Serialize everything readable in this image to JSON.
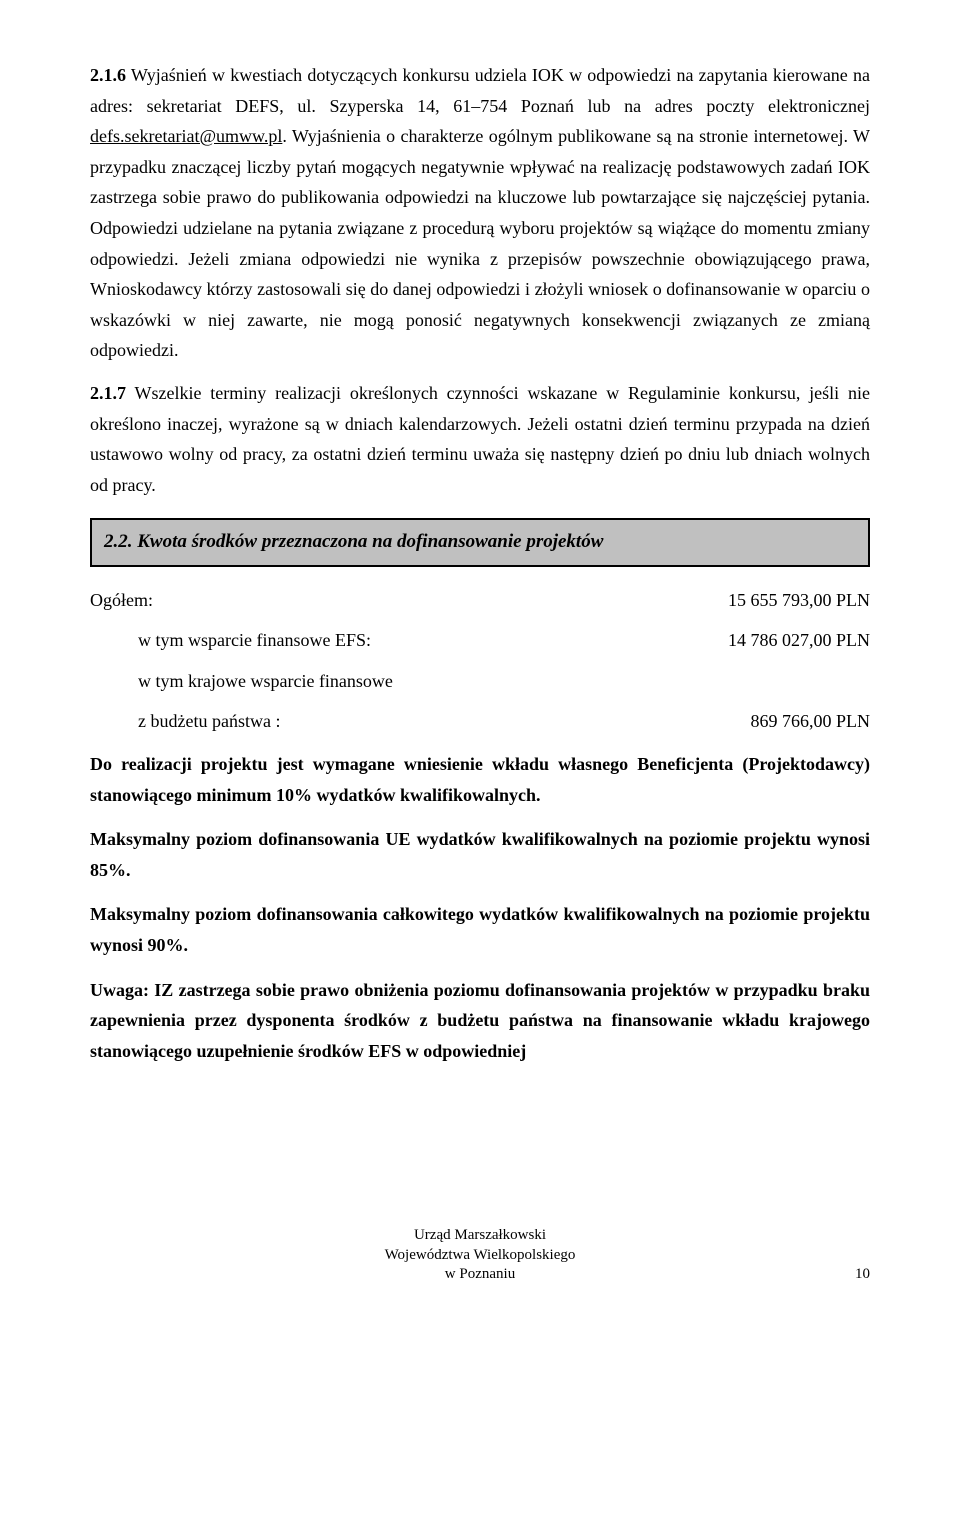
{
  "paragraphs": {
    "p216_num": "2.1.6",
    "p216_text": "Wyjaśnień w kwestiach dotyczących konkursu udziela IOK w odpowiedzi na zapytania kierowane na adres: sekretariat DEFS, ul. Szyperska 14, 61–754 Poznań lub na adres poczty elektronicznej ",
    "p216_email": "defs.sekretariat@umww.pl",
    "p216_text2": ". Wyjaśnienia o charakterze ogólnym publikowane są na stronie internetowej. W przypadku znaczącej liczby pytań mogących negatywnie wpływać na realizację podstawowych zadań IOK zastrzega sobie prawo do publikowania odpowiedzi na kluczowe lub powtarzające się najczęściej pytania. Odpowiedzi udzielane na pytania związane z procedurą wyboru projektów są wiążące do momentu zmiany odpowiedzi. Jeżeli zmiana odpowiedzi nie wynika z przepisów powszechnie obowiązującego prawa, Wnioskodawcy którzy zastosowali się do danej odpowiedzi i złożyli wniosek o dofinansowanie w oparciu o wskazówki w niej zawarte, nie mogą ponosić negatywnych konsekwencji związanych ze zmianą odpowiedzi.",
    "p217_num": "2.1.7",
    "p217_text": "Wszelkie terminy realizacji określonych czynności wskazane w Regulaminie konkursu, jeśli nie określono inaczej, wyrażone są w dniach kalendarzowych. Jeżeli ostatni dzień terminu przypada na dzień ustawowo wolny od pracy, za ostatni dzień terminu uważa się następny dzień po dniu lub dniach wolnych od pracy."
  },
  "section_header": "2.2. Kwota środków przeznaczona na dofinansowanie projektów",
  "budget": {
    "total_label": "Ogółem:",
    "total_value": "15 655 793,00 PLN",
    "efs_label": "w tym wsparcie finansowe EFS:",
    "efs_value": "14 786 027,00 PLN",
    "national_label": "w tym krajowe wsparcie finansowe",
    "state_label": "z budżetu państwa :",
    "state_value": "869 766,00 PLN"
  },
  "bold_paras": {
    "b1": "Do realizacji projektu jest wymagane wniesienie wkładu własnego Beneficjenta (Projektodawcy) stanowiącego minimum 10% wydatków kwalifikowalnych.",
    "b2": "Maksymalny poziom dofinansowania UE wydatków kwalifikowalnych na poziomie projektu wynosi 85%.",
    "b3": "Maksymalny poziom dofinansowania całkowitego wydatków kwalifikowalnych na poziomie projektu wynosi 90%.",
    "b4": "Uwaga: IZ zastrzega sobie prawo obniżenia poziomu dofinansowania projektów w przypadku braku zapewnienia przez dysponenta środków z budżetu państwa na finansowanie wkładu krajowego stanowiącego uzupełnienie środków EFS w odpowiedniej"
  },
  "footer": {
    "line1": "Urząd Marszałkowski",
    "line2": "Województwa Wielkopolskiego",
    "line3": "w Poznaniu",
    "pagenum": "10"
  }
}
